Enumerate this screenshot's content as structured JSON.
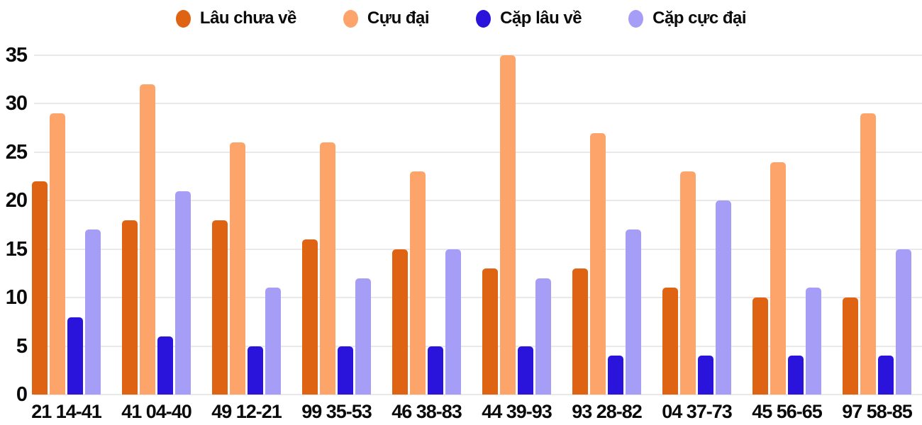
{
  "chart_data": {
    "type": "bar",
    "title": "",
    "xlabel": "",
    "ylabel": "",
    "categories": [
      "21 14-41",
      "41 04-40",
      "49 12-21",
      "99 35-53",
      "46 38-83",
      "44 39-93",
      "93 28-82",
      "04 37-73",
      "45 56-65",
      "97 58-85"
    ],
    "series": [
      {
        "name": "Lâu chưa về",
        "color": "#DE6312",
        "values": [
          22,
          18,
          18,
          16,
          15,
          13,
          13,
          11,
          10,
          10
        ]
      },
      {
        "name": "Cựu đại",
        "color": "#FCA469",
        "values": [
          29,
          32,
          26,
          26,
          23,
          35,
          27,
          23,
          24,
          29
        ]
      },
      {
        "name": "Cặp lâu về",
        "color": "#2A14DB",
        "values": [
          8,
          6,
          5,
          5,
          5,
          5,
          4,
          4,
          4,
          4
        ]
      },
      {
        "name": "Cặp cực đại",
        "color": "#A69DF6",
        "values": [
          17,
          21,
          11,
          12,
          15,
          12,
          17,
          20,
          11,
          15
        ]
      }
    ],
    "y_ticks": [
      0,
      5,
      10,
      15,
      20,
      25,
      30,
      35
    ],
    "ylim": [
      0,
      35
    ],
    "grid": true,
    "legend_position": "top",
    "colors": {
      "gridline": "#E9E9E9",
      "text": "#0A0A0A",
      "background": "#FFFFFF"
    }
  }
}
